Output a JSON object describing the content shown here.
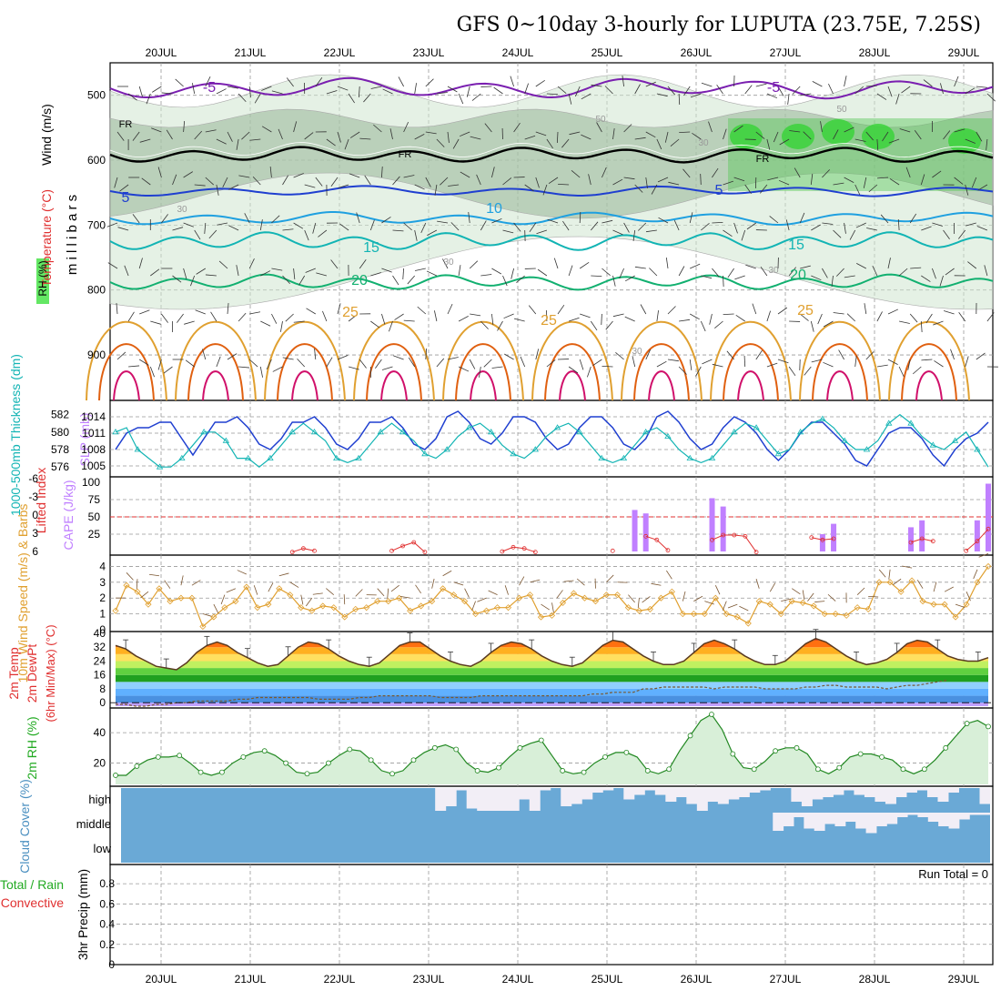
{
  "title": "GFS 0~10day 3-hourly for LUPUTA (23.75E, 7.25S)",
  "dates": [
    "20JUL",
    "21JUL",
    "22JUL",
    "23JUL",
    "24JUL",
    "25JUL",
    "26JUL",
    "27JUL",
    "28JUL",
    "29JUL"
  ],
  "colors": {
    "purple": "#7a1fb0",
    "blue": "#1f3fd0",
    "lightblue": "#1fa0e0",
    "teal": "#12b4b4",
    "green": "#12b070",
    "orange": "#e0a030",
    "darkorange": "#e06010",
    "magenta": "#d0106a",
    "rhgreen": "#22dd22",
    "cape": "#c080ff",
    "lifted": "#e03030",
    "cloud": "#6aa9d6"
  },
  "chart_data": [
    {
      "type": "contour",
      "panel": "upper-air",
      "ylabel": "m i l l i b a r s",
      "left_label_1": "Wind (m/s)",
      "left_label_2": "Temperature (°C)",
      "left_label_3": "RH (%)",
      "y_ticks": [
        "500",
        "600",
        "700",
        "800",
        "900"
      ],
      "ylim": [
        970,
        450
      ],
      "temp_labels": [
        "-5",
        "-5",
        "FR",
        "FR",
        "FR",
        "5",
        "5",
        "10",
        "15",
        "15",
        "20",
        "20",
        "25",
        "25",
        "25"
      ],
      "rh_labels": [
        "30",
        "30",
        "30",
        "50",
        "50",
        "30",
        "30"
      ]
    },
    {
      "type": "line",
      "panel": "thickness-slp",
      "left_label": "1000-500mb Thickness (dm)",
      "right_label": "SLP (mb)",
      "thickness_ticks": [
        "582",
        "580",
        "578",
        "576"
      ],
      "slp_ticks": [
        "1014",
        "1011",
        "1008",
        "1005"
      ],
      "slp_ylim": [
        1004,
        1016
      ],
      "thick_ylim": [
        575.5,
        583
      ],
      "series": [
        {
          "name": "SLP",
          "values": [
            1008,
            1011,
            1012,
            1012,
            1013,
            1013,
            1010,
            1007,
            1010,
            1013,
            1013,
            1014,
            1012,
            1009,
            1008,
            1010,
            1013,
            1013,
            1014,
            1012,
            1009,
            1008,
            1010,
            1013,
            1013,
            1014,
            1012,
            1009,
            1008,
            1010,
            1014,
            1015,
            1013,
            1010,
            1009,
            1011,
            1014,
            1014,
            1013,
            1010,
            1008,
            1009,
            1012,
            1014,
            1014,
            1012,
            1009,
            1008,
            1010,
            1014,
            1015,
            1013,
            1010,
            1008,
            1009,
            1012,
            1014,
            1013,
            1011,
            1008,
            1006,
            1008,
            1011,
            1013,
            1013,
            1011,
            1009,
            1006,
            1005,
            1008,
            1011,
            1012,
            1012,
            1010,
            1007,
            1005,
            1008,
            1010,
            1011,
            1013
          ]
        },
        {
          "name": "Thickness",
          "values": [
            580,
            580.5,
            578,
            577,
            576,
            576,
            577,
            578.5,
            580,
            580,
            579,
            577,
            577,
            576,
            577,
            578.5,
            580,
            581,
            580,
            579,
            577,
            576.5,
            577,
            578.5,
            580,
            581,
            580,
            579,
            577.5,
            577,
            578,
            579.5,
            580.5,
            581,
            580,
            578.5,
            577.5,
            577,
            578,
            579.5,
            580.5,
            581,
            580,
            578.5,
            577,
            576.5,
            577,
            578.5,
            580,
            580.5,
            579.5,
            578,
            577,
            576.5,
            577,
            578.5,
            580,
            581,
            580.5,
            579,
            577.5,
            578,
            580,
            581,
            581.5,
            580.5,
            579,
            578,
            578,
            579,
            581,
            582,
            581,
            579.5,
            578.5,
            578,
            579,
            580,
            578,
            576
          ]
        }
      ]
    },
    {
      "type": "bar",
      "panel": "cape-lifted",
      "left_label": "Lifted Index",
      "right_label": "CAPE (J/kg)",
      "li_ticks": [
        "-6",
        "-3",
        "0",
        "3",
        "6"
      ],
      "cape_ticks": [
        "100",
        "75",
        "50",
        "25"
      ],
      "cape_ylim": [
        0,
        100
      ],
      "series": [
        {
          "name": "CAPE",
          "values": [
            0,
            0,
            0,
            0,
            0,
            0,
            0,
            0,
            0,
            0,
            0,
            0,
            0,
            0,
            0,
            0,
            0,
            0,
            0,
            0,
            0,
            0,
            0,
            0,
            0,
            0,
            0,
            0,
            0,
            0,
            0,
            0,
            0,
            0,
            0,
            0,
            0,
            0,
            0,
            0,
            0,
            0,
            0,
            0,
            0,
            0,
            0,
            60,
            55,
            0,
            0,
            0,
            0,
            0,
            77,
            65,
            0,
            0,
            0,
            0,
            0,
            0,
            0,
            0,
            25,
            40,
            0,
            0,
            0,
            0,
            0,
            0,
            35,
            45,
            0,
            0,
            0,
            0,
            45,
            98
          ]
        },
        {
          "name": "Lifted Index",
          "values": [
            null,
            null,
            null,
            null,
            null,
            null,
            null,
            null,
            null,
            null,
            null,
            null,
            null,
            null,
            null,
            null,
            5.8,
            5.2,
            5.6,
            null,
            null,
            null,
            null,
            null,
            null,
            5.6,
            4.8,
            4.2,
            5.8,
            null,
            null,
            null,
            null,
            null,
            null,
            5.7,
            5.0,
            5.2,
            5.8,
            null,
            null,
            null,
            null,
            null,
            null,
            5.6,
            null,
            null,
            3.2,
            3.8,
            5.5,
            null,
            null,
            null,
            3.8,
            3.0,
            3.0,
            3.2,
            5.8,
            null,
            null,
            null,
            null,
            3.4,
            3.8,
            3.6,
            null,
            null,
            null,
            null,
            null,
            null,
            4.2,
            3.6,
            4.0,
            null,
            null,
            5.6,
            4.0,
            2.0
          ]
        }
      ]
    },
    {
      "type": "line",
      "panel": "wind10m",
      "left_label": "10m Wind Speed (m/s) & Barbs",
      "y_ticks": [
        "4",
        "3",
        "2",
        "1",
        "0"
      ],
      "ylim": [
        0,
        4.6
      ],
      "values": [
        1.2,
        2.8,
        2.4,
        1.6,
        2.6,
        1.8,
        2.0,
        2.0,
        0.2,
        0.8,
        1.4,
        1.8,
        2.7,
        1.4,
        1.6,
        2.6,
        2.2,
        1.4,
        1.2,
        1.5,
        1.4,
        0.8,
        1.3,
        1.4,
        1.8,
        1.8,
        2.0,
        1.2,
        1.5,
        1.8,
        2.6,
        2.2,
        1.8,
        1.0,
        1.2,
        1.4,
        1.4,
        2.0,
        2.2,
        0.8,
        0.9,
        1.7,
        2.3,
        2.0,
        1.8,
        2.2,
        2.2,
        1.4,
        1.2,
        1.3,
        2.0,
        2.4,
        1.0,
        1.0,
        1.0,
        2.0,
        1.0,
        0.8,
        0.4,
        1.8,
        1.6,
        1.0,
        1.8,
        1.7,
        1.5,
        1.0,
        1.0,
        0.9,
        1.4,
        1.3,
        3.0,
        3.0,
        2.4,
        3.1,
        1.8,
        1.6,
        1.6,
        0.8,
        1.6,
        3.0,
        4.0
      ]
    },
    {
      "type": "area",
      "panel": "temperature",
      "left_label_1": "2m Temp",
      "left_label_2": "2m DewPt",
      "left_label_3": "(6hr Min/Max) (°C)",
      "y_ticks": [
        "40",
        "32",
        "24",
        "16",
        "8",
        "0"
      ],
      "ylim": [
        -2,
        40
      ],
      "temp": [
        33,
        31,
        27,
        24,
        21,
        20,
        19,
        23,
        29,
        33,
        35,
        33,
        29,
        26,
        23,
        21,
        22,
        27,
        32,
        35,
        34,
        31,
        27,
        24,
        22,
        21,
        23,
        28,
        33,
        35,
        35,
        31,
        27,
        24,
        22,
        21,
        24,
        29,
        33,
        35,
        34,
        31,
        27,
        24,
        22,
        21,
        23,
        28,
        33,
        36,
        35,
        31,
        27,
        24,
        22,
        22,
        24,
        29,
        34,
        36,
        34,
        31,
        27,
        24,
        22,
        22,
        24,
        29,
        34,
        37,
        35,
        31,
        27,
        24,
        22,
        23,
        25,
        29,
        34,
        36,
        35,
        31,
        27,
        25,
        24,
        24,
        26
      ],
      "dewpt": [
        -1,
        -1,
        -2,
        -2,
        -1,
        -1,
        0,
        0,
        1,
        1,
        1,
        1,
        2,
        2,
        3,
        3,
        3,
        3,
        3,
        3,
        2,
        2,
        2,
        2,
        3,
        3,
        4,
        4,
        4,
        4,
        4,
        4,
        3,
        3,
        3,
        3,
        4,
        4,
        4,
        4,
        4,
        4,
        4,
        4,
        4,
        4,
        4,
        5,
        5,
        6,
        6,
        6,
        8,
        8,
        9,
        9,
        9,
        9,
        9,
        8,
        9,
        9,
        9,
        9,
        8,
        8,
        8,
        8,
        9,
        9,
        10,
        10,
        9,
        9,
        9,
        9,
        8,
        9,
        10,
        10,
        11,
        12,
        13
      ]
    },
    {
      "type": "area",
      "panel": "rh2m",
      "left_label": "2m RH (%)",
      "y_ticks": [
        "40",
        "20"
      ],
      "ylim": [
        6,
        55
      ],
      "values": [
        12,
        12,
        18,
        22,
        24,
        24,
        25,
        20,
        14,
        12,
        14,
        20,
        24,
        27,
        28,
        25,
        20,
        14,
        13,
        14,
        20,
        25,
        29,
        28,
        22,
        15,
        13,
        15,
        22,
        27,
        30,
        32,
        29,
        20,
        15,
        14,
        17,
        24,
        30,
        33,
        35,
        25,
        15,
        13,
        14,
        20,
        24,
        27,
        27,
        24,
        15,
        13,
        16,
        28,
        38,
        48,
        52,
        42,
        26,
        17,
        16,
        21,
        28,
        30,
        30,
        26,
        16,
        13,
        17,
        24,
        26,
        26,
        24,
        22,
        16,
        13,
        16,
        22,
        30,
        38,
        46,
        48,
        44
      ]
    },
    {
      "type": "heatmap",
      "panel": "cloud",
      "left_label": "Cloud Cover (%)",
      "row_labels": [
        "high",
        "middle",
        "low"
      ],
      "high": [
        0,
        0,
        0,
        0,
        0,
        0,
        0,
        0,
        0,
        0,
        0,
        0,
        0,
        0,
        0,
        0,
        0,
        0,
        0,
        0,
        0,
        0,
        0,
        0,
        0,
        0,
        0,
        0,
        0,
        10,
        1.0,
        0.8,
        0.1,
        0.9,
        1.0,
        1.0,
        1.0,
        1.0,
        0.5,
        1.0,
        0.1,
        0,
        0.8,
        0.7,
        0.5,
        0.2,
        0.1,
        0,
        0.5,
        0.3,
        0.1,
        0.3,
        0.6,
        0.4,
        0.7,
        1.0,
        0.6,
        0.7,
        0.5,
        0.4,
        0.2,
        0.1,
        0,
        0,
        0.6,
        0.8,
        0.5,
        0.4,
        0.3,
        0.1,
        0.3,
        0.4,
        0.6,
        0.7,
        0.4,
        0.2,
        0.1,
        0.4,
        0.6,
        0.2,
        0,
        0,
        0.7
      ],
      "middle": [
        0,
        0,
        0,
        0,
        0,
        0,
        0,
        0,
        0,
        0,
        0,
        0,
        0,
        0,
        0,
        0,
        0,
        0,
        0,
        0,
        0,
        0,
        0,
        0,
        0,
        0,
        0,
        0,
        0,
        0,
        0,
        0,
        0,
        0,
        0,
        0,
        0,
        0,
        0,
        0,
        0,
        0,
        0,
        0,
        0,
        0,
        0,
        0,
        0,
        0,
        0,
        0,
        0,
        0,
        0,
        0,
        0,
        0,
        0,
        0,
        0,
        0,
        0,
        0.8,
        0.6,
        0.2,
        0.7,
        0.8,
        0.5,
        0.6,
        0.4,
        0.7,
        0.9,
        0.6,
        0.5,
        0.2,
        0.1,
        0.2,
        0.4,
        0.6,
        0.7,
        0.3,
        0.1,
        0.1
      ],
      "low": [
        0,
        0,
        0,
        0,
        0,
        0,
        0,
        0,
        0,
        0,
        0,
        0,
        0,
        0,
        0,
        0,
        0,
        0,
        0,
        0,
        0,
        0,
        0,
        0,
        0,
        0,
        0,
        0,
        0,
        0,
        0,
        0,
        0,
        0,
        0,
        0,
        0,
        0,
        0,
        0,
        0,
        0,
        0,
        0,
        0,
        0,
        0,
        0,
        0,
        0,
        0,
        0,
        0,
        0,
        0,
        0,
        0,
        0,
        0,
        0,
        0,
        0,
        0,
        0,
        0,
        0,
        0,
        0,
        0,
        0,
        0,
        0,
        0,
        0,
        0,
        0,
        0,
        0,
        0,
        0,
        0,
        0,
        0
      ]
    },
    {
      "type": "bar",
      "panel": "precip",
      "left_label_1": "Total / Rain",
      "left_label_2": "Convective",
      "left_label_3": "3hr Precip (mm)",
      "y_ticks": [
        "0.8",
        "0.6",
        "0.4",
        "0.2",
        "0"
      ],
      "ylim": [
        0,
        0.9
      ],
      "run_total": "Run Total = 0",
      "values": []
    }
  ]
}
